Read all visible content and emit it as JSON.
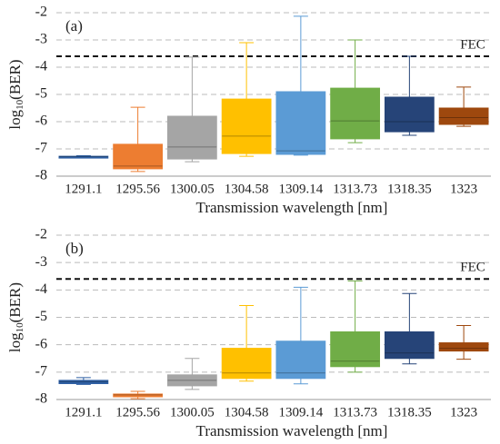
{
  "chart_data": [
    {
      "type": "box",
      "title": "(a)",
      "x_label": "Transmission wavelength [nm]",
      "y_label": [
        "log",
        "10",
        "(BER)"
      ],
      "categories": [
        "1291.1",
        "1295.56",
        "1300.05",
        "1304.58",
        "1309.14",
        "1313.73",
        "1318.35",
        "1323"
      ],
      "colors": [
        "#2e5fa3",
        "#ed7d31",
        "#a5a5a5",
        "#ffc000",
        "#5b9bd5",
        "#70ad47",
        "#264478",
        "#9e480e"
      ],
      "min": [
        -7.32,
        -7.83,
        -7.47,
        -7.27,
        -7.23,
        -6.77,
        -6.5,
        -6.17
      ],
      "q1": [
        -7.3,
        -7.73,
        -7.37,
        -7.17,
        -7.2,
        -6.63,
        -6.37,
        -6.1
      ],
      "median": [
        -7.28,
        -7.63,
        -6.93,
        -6.53,
        -7.07,
        -5.97,
        -6.0,
        -5.85
      ],
      "q3": [
        -7.27,
        -6.83,
        -5.8,
        -5.17,
        -4.9,
        -4.77,
        -5.1,
        -5.5
      ],
      "max": [
        -7.25,
        -5.47,
        -3.63,
        -3.1,
        -2.13,
        -3.0,
        -3.6,
        -4.73
      ],
      "threshold": {
        "label": "FEC",
        "value": -3.6
      },
      "ylim": [
        -8,
        -2
      ],
      "yticks": [
        -8,
        -7,
        -6,
        -5,
        -4,
        -3,
        -2
      ],
      "grid": true
    },
    {
      "type": "box",
      "title": "(b)",
      "x_label": "Transmission wavelength [nm]",
      "y_label": [
        "log",
        "10",
        "(BER)"
      ],
      "categories": [
        "1291.1",
        "1295.56",
        "1300.05",
        "1304.58",
        "1309.14",
        "1313.73",
        "1318.35",
        "1323"
      ],
      "colors": [
        "#2e5fa3",
        "#ed7d31",
        "#a5a5a5",
        "#ffc000",
        "#5b9bd5",
        "#70ad47",
        "#264478",
        "#9e480e"
      ],
      "min": [
        -7.45,
        -7.97,
        -7.63,
        -7.33,
        -7.43,
        -7.0,
        -6.7,
        -6.53
      ],
      "q1": [
        -7.42,
        -7.9,
        -7.5,
        -7.23,
        -7.23,
        -6.8,
        -6.5,
        -6.23
      ],
      "median": [
        -7.35,
        -7.83,
        -7.3,
        -7.03,
        -7.03,
        -6.6,
        -6.3,
        -6.13
      ],
      "q3": [
        -7.3,
        -7.8,
        -7.1,
        -6.13,
        -5.87,
        -5.53,
        -5.53,
        -5.93
      ],
      "max": [
        -7.2,
        -7.7,
        -6.5,
        -4.57,
        -3.9,
        -3.67,
        -4.13,
        -5.3
      ],
      "threshold": {
        "label": "FEC",
        "value": -3.6
      },
      "ylim": [
        -8,
        -2
      ],
      "yticks": [
        -8,
        -7,
        -6,
        -5,
        -4,
        -3,
        -2
      ],
      "grid": true
    }
  ]
}
